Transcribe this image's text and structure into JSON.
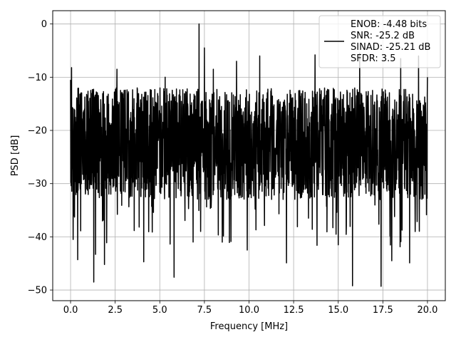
{
  "chart_data": {
    "type": "line",
    "title": "",
    "xlabel": "Frequency [MHz]",
    "ylabel": "PSD [dB]",
    "xlim": [
      -1.0,
      21.0
    ],
    "ylim": [
      -52.0,
      2.5
    ],
    "xticks": [
      0.0,
      2.5,
      5.0,
      7.5,
      10.0,
      12.5,
      15.0,
      17.5,
      20.0
    ],
    "xtick_labels": [
      "0.0",
      "2.5",
      "5.0",
      "7.5",
      "10.0",
      "12.5",
      "15.0",
      "17.5",
      "20.0"
    ],
    "yticks": [
      0,
      -10,
      -20,
      -30,
      -40,
      -50
    ],
    "ytick_labels": [
      "0",
      "−10",
      "−20",
      "−30",
      "−40",
      "−50"
    ],
    "grid": true,
    "legend_placement": "top-right",
    "series": [
      {
        "color": "#000000",
        "legend_lines": [
          "ENOB: -4.48 bits",
          "SNR: -25.2 dB",
          "SINAD: -25.21 dB",
          "SFDR: 3.5"
        ],
        "peaks": [
          [
            0.0,
            -10.5
          ],
          [
            0.05,
            -8.2
          ],
          [
            0.15,
            -40.5
          ],
          [
            0.4,
            -44.3
          ],
          [
            1.3,
            -48.5
          ],
          [
            1.4,
            -43.3
          ],
          [
            1.9,
            -45.2
          ],
          [
            2.6,
            -8.5
          ],
          [
            4.1,
            -44.7
          ],
          [
            5.3,
            -10.0
          ],
          [
            5.8,
            -47.6
          ],
          [
            7.2,
            0.0
          ],
          [
            7.5,
            -4.5
          ],
          [
            8.0,
            -8.5
          ],
          [
            8.5,
            -41.0
          ],
          [
            9.3,
            -7.0
          ],
          [
            9.9,
            -42.5
          ],
          [
            10.6,
            -6.0
          ],
          [
            12.1,
            -44.9
          ],
          [
            13.7,
            -5.8
          ],
          [
            15.0,
            -41.5
          ],
          [
            15.8,
            -49.2
          ],
          [
            16.2,
            -5.5
          ],
          [
            17.4,
            -49.3
          ],
          [
            18.0,
            -44.5
          ],
          [
            18.5,
            -6.5
          ],
          [
            19.0,
            -44.9
          ],
          [
            19.5,
            -6.0
          ],
          [
            20.0,
            -10.0
          ]
        ]
      }
    ]
  }
}
